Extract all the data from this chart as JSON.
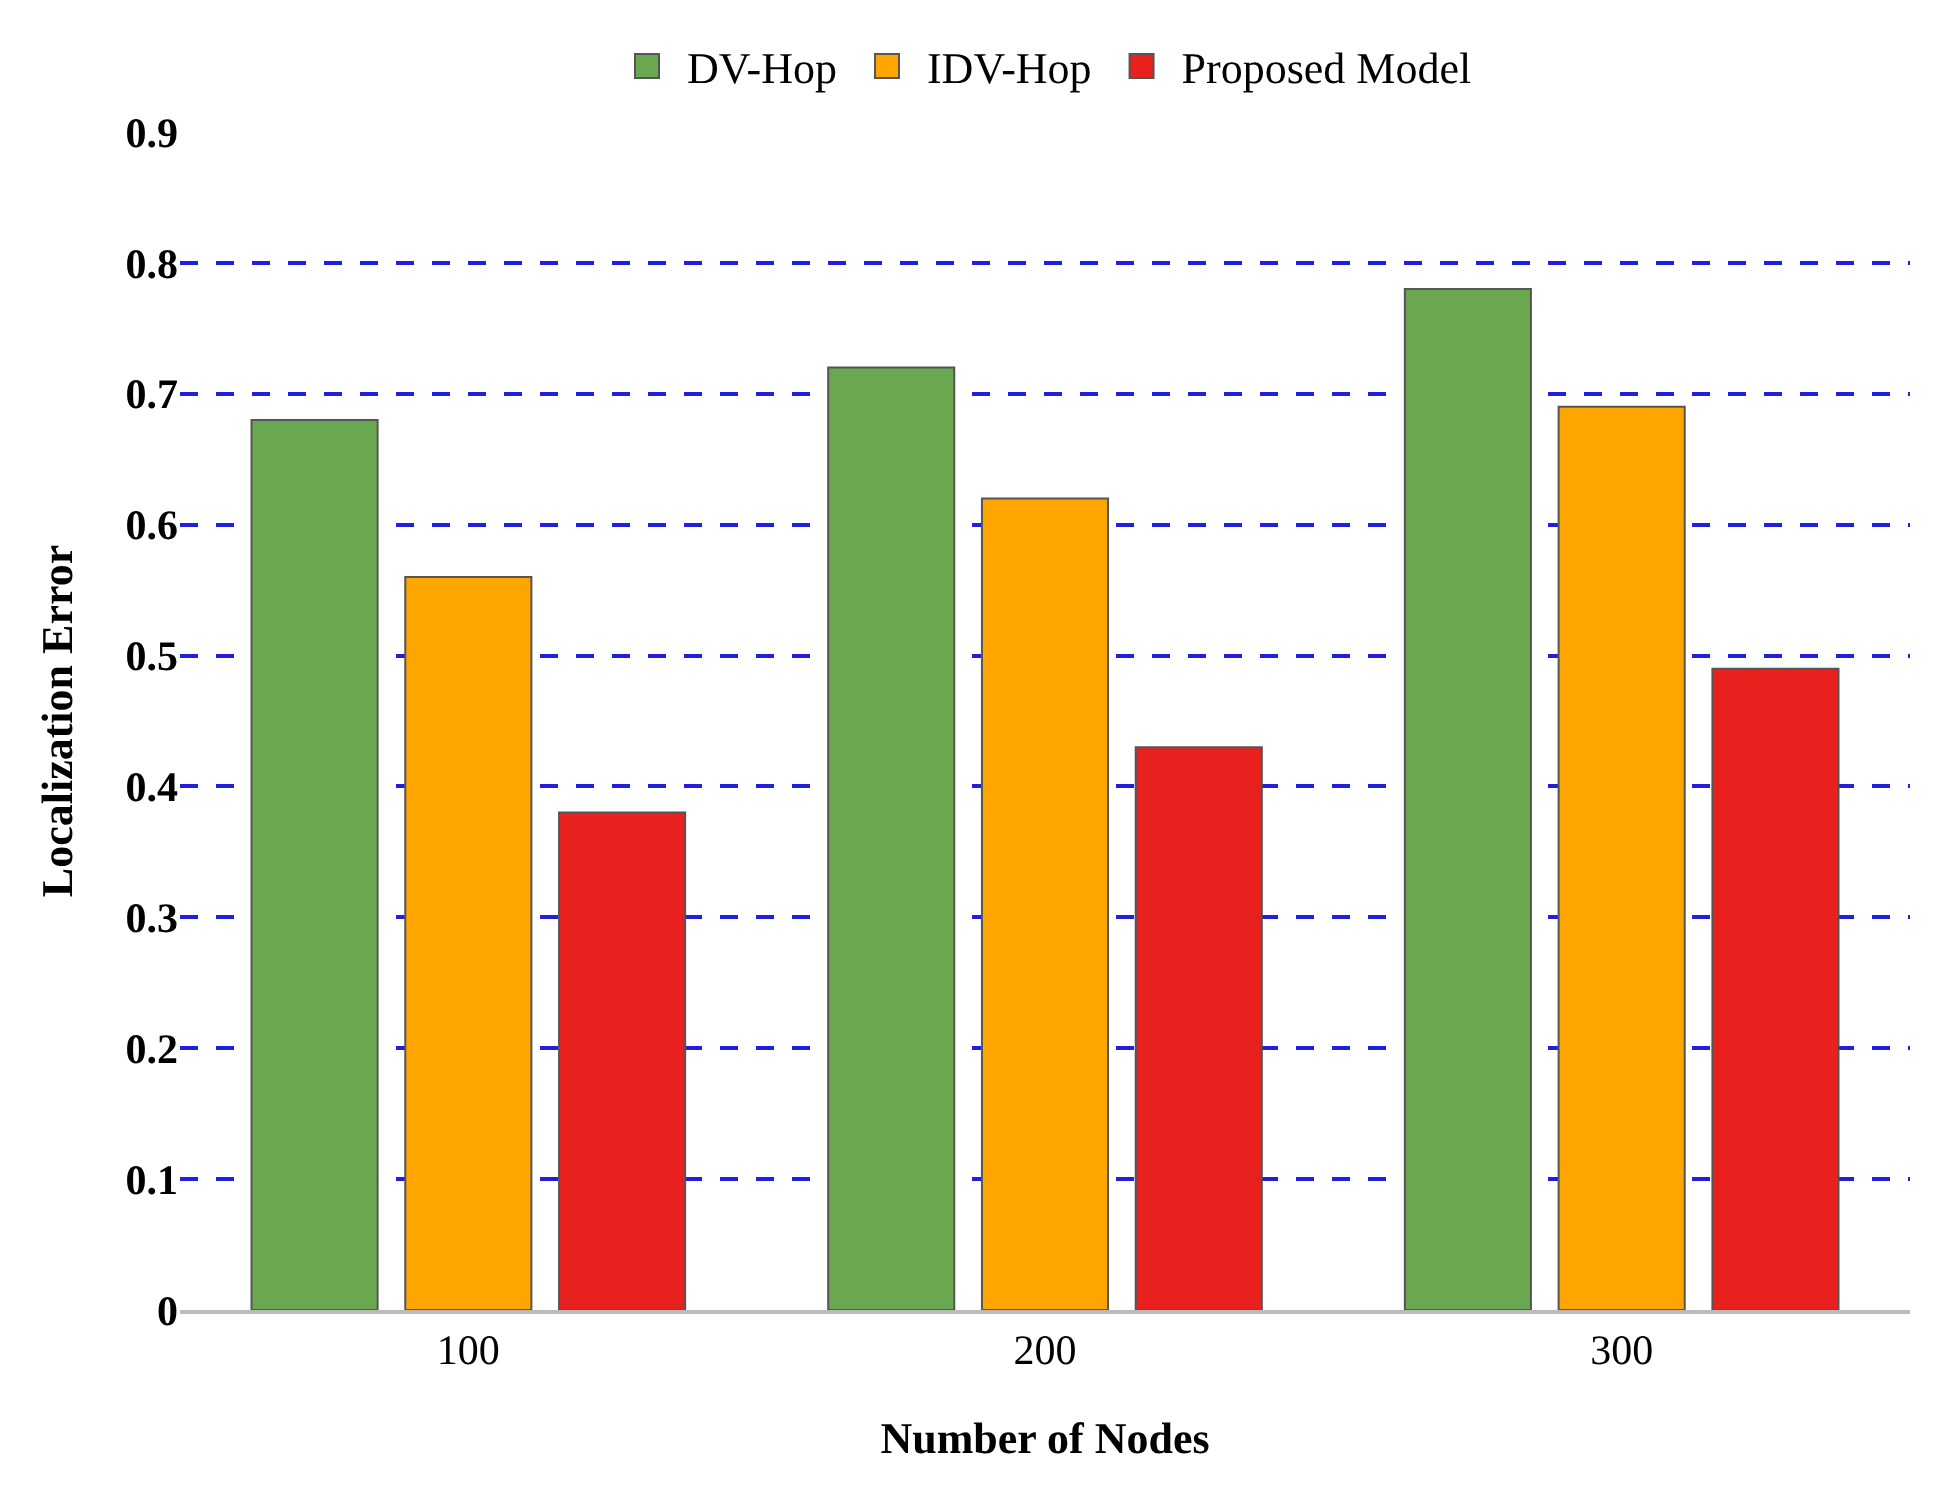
{
  "chart_data": {
    "type": "bar",
    "xlabel": "Number of Nodes",
    "ylabel": "Localization Error",
    "categories": [
      "100",
      "200",
      "300"
    ],
    "series": [
      {
        "name": "DV-Hop",
        "color": "#6aa84f",
        "values": [
          0.68,
          0.72,
          0.78
        ]
      },
      {
        "name": "IDV-Hop",
        "color": "#ffa500",
        "values": [
          0.56,
          0.62,
          0.69
        ]
      },
      {
        "name": "Proposed Model",
        "color": "#e8201e",
        "values": [
          0.38,
          0.43,
          0.49
        ]
      }
    ],
    "ylim": [
      0,
      0.9
    ],
    "yticks": [
      0,
      0.1,
      0.2,
      0.3,
      0.4,
      0.5,
      0.6,
      0.7,
      0.8,
      0.9
    ],
    "grid": "y",
    "legend": "top"
  }
}
